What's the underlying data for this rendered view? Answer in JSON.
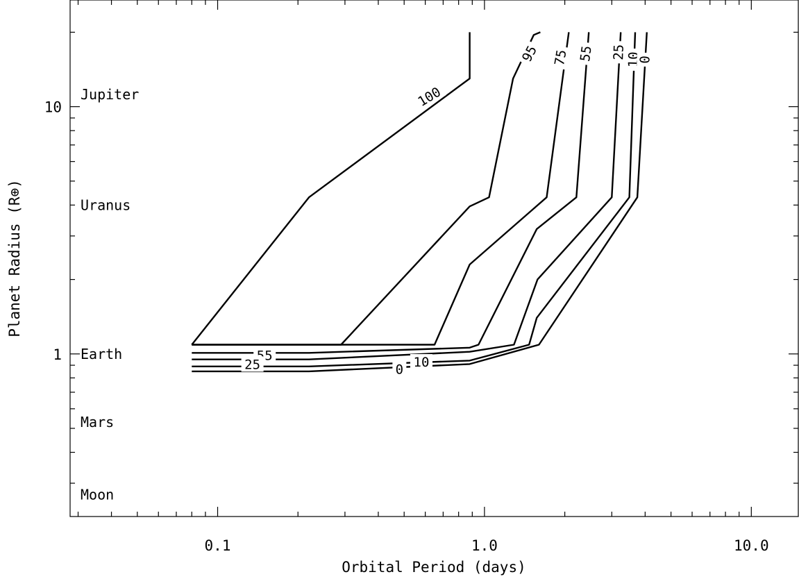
{
  "chart_data": {
    "type": "contour",
    "title": "",
    "xlabel": "Orbital Period (days)",
    "ylabel": "Planet Radius (R⊕)",
    "xscale": "log",
    "yscale": "log",
    "xlim": [
      0.028,
      15
    ],
    "ylim": [
      0.22,
      27
    ],
    "grid": false,
    "x_ticks": [
      {
        "value": 0.1,
        "label": "0.1"
      },
      {
        "value": 1.0,
        "label": "1.0"
      },
      {
        "value": 10.0,
        "label": "10.0"
      }
    ],
    "y_ticks": [
      {
        "value": 1,
        "label": "1"
      },
      {
        "value": 10,
        "label": "10"
      }
    ],
    "reference_labels": [
      {
        "name": "Jupiter",
        "radius": 11.2
      },
      {
        "name": "Uranus",
        "radius": 4.0
      },
      {
        "name": "Earth",
        "radius": 1.0
      },
      {
        "name": "Mars",
        "radius": 0.53
      },
      {
        "name": "Moon",
        "radius": 0.27
      }
    ],
    "contours": [
      {
        "level": 100,
        "label": "100",
        "label_at": [
          0.62,
          11.0
        ],
        "label_angle": -31,
        "points": [
          [
            0.08,
            1.09
          ],
          [
            0.22,
            4.3
          ],
          [
            0.88,
            13.0
          ],
          [
            0.88,
            20.0
          ]
        ]
      },
      {
        "level": 95,
        "label": "95",
        "label_at": [
          1.47,
          16.4
        ],
        "label_angle": -62,
        "points": [
          [
            0.08,
            1.09
          ],
          [
            0.29,
            1.09
          ],
          [
            0.88,
            3.95
          ],
          [
            1.04,
            4.3
          ],
          [
            1.28,
            13.0
          ],
          [
            1.53,
            19.5
          ],
          [
            1.62,
            20.0
          ]
        ]
      },
      {
        "level": 75,
        "label": "75",
        "label_at": [
          1.92,
          15.8
        ],
        "label_angle": -80,
        "points": [
          [
            0.08,
            1.09
          ],
          [
            0.65,
            1.09
          ],
          [
            0.88,
            2.3
          ],
          [
            1.71,
            4.3
          ],
          [
            2.07,
            20.0
          ]
        ]
      },
      {
        "level": 55,
        "label": "55",
        "label_at": [
          0.15,
          0.99
        ],
        "label_angle": 0,
        "points": [
          [
            0.08,
            1.01
          ],
          [
            0.22,
            1.01
          ],
          [
            0.88,
            1.06
          ],
          [
            0.95,
            1.09
          ],
          [
            1.57,
            3.2
          ],
          [
            2.21,
            4.3
          ],
          [
            2.46,
            20.0
          ]
        ]
      },
      {
        "level": 55,
        "label": "55",
        "label_at": [
          2.39,
          16.4
        ],
        "label_angle": -82,
        "points": []
      },
      {
        "level": 25,
        "label": "25",
        "label_at": [
          0.135,
          0.91
        ],
        "label_angle": 0,
        "points": [
          [
            0.08,
            0.95
          ],
          [
            0.22,
            0.95
          ],
          [
            0.88,
            1.02
          ],
          [
            1.29,
            1.09
          ],
          [
            1.58,
            2.0
          ],
          [
            3.0,
            4.3
          ],
          [
            3.24,
            20.0
          ]
        ]
      },
      {
        "level": 25,
        "label": "25",
        "label_at": [
          3.17,
          16.6
        ],
        "label_angle": -88,
        "points": []
      },
      {
        "level": 10,
        "label": "10",
        "label_at": [
          0.58,
          0.93
        ],
        "label_angle": 0,
        "points": [
          [
            0.08,
            0.89
          ],
          [
            0.22,
            0.89
          ],
          [
            0.88,
            0.94
          ],
          [
            1.47,
            1.09
          ],
          [
            1.57,
            1.4
          ],
          [
            3.49,
            4.3
          ],
          [
            3.67,
            20.0
          ]
        ]
      },
      {
        "level": 10,
        "label": "10",
        "label_at": [
          3.6,
          15.5
        ],
        "label_angle": -88,
        "points": []
      },
      {
        "level": 0,
        "label": "0",
        "label_at": [
          0.48,
          0.87
        ],
        "label_angle": 0,
        "points": [
          [
            0.08,
            0.85
          ],
          [
            0.22,
            0.85
          ],
          [
            0.88,
            0.91
          ],
          [
            1.6,
            1.09
          ],
          [
            3.74,
            4.3
          ],
          [
            4.06,
            20.0
          ]
        ]
      },
      {
        "level": 0,
        "label": "0",
        "label_at": [
          3.98,
          15.5
        ],
        "label_angle": -88,
        "points": []
      }
    ]
  }
}
